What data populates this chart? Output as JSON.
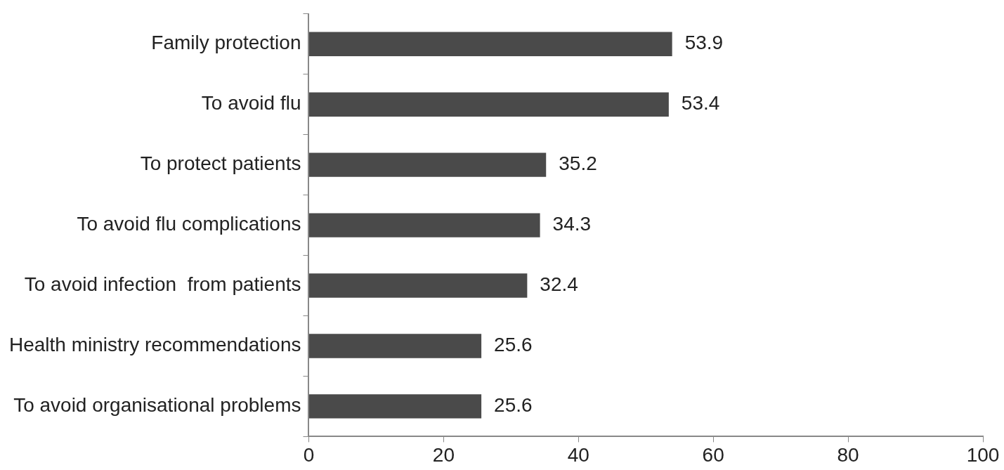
{
  "chart_data": {
    "type": "bar",
    "orientation": "horizontal",
    "categories": [
      "Family protection",
      "To avoid flu",
      "To protect patients",
      "To avoid flu complications",
      "To avoid infection  from patients",
      "Health ministry recommendations",
      "To avoid organisational problems"
    ],
    "values": [
      53.9,
      53.4,
      35.2,
      34.3,
      32.4,
      25.6,
      25.6
    ],
    "color": "#4a4a4a",
    "xlim": [
      0,
      100
    ],
    "xticks": [
      0,
      20,
      40,
      60,
      80,
      100
    ],
    "grid": false,
    "legend": false,
    "data_labels": true
  }
}
